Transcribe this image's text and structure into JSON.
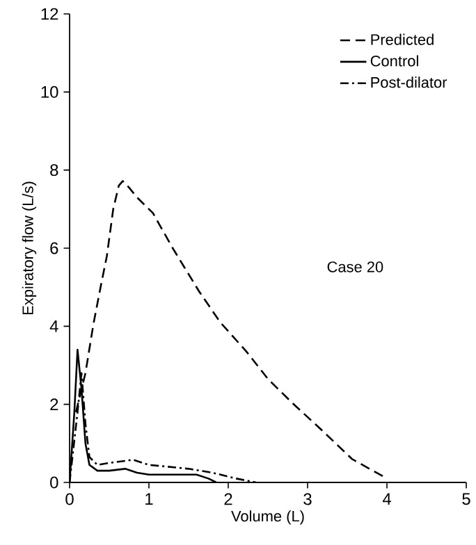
{
  "chart_data": {
    "type": "line",
    "xlabel": "Volume (L)",
    "ylabel": "Expiratory flow (L/s)",
    "xlim": [
      0,
      5
    ],
    "ylim": [
      0,
      12
    ],
    "xticks": [
      0,
      1,
      2,
      3,
      4,
      5
    ],
    "yticks": [
      0,
      2,
      4,
      6,
      8,
      10,
      12
    ],
    "legend": "top right",
    "grid": false,
    "marker": "none",
    "annotations": [
      "Case 20"
    ],
    "series": [
      {
        "name": "Predicted",
        "color": "#000000",
        "line_style": "dashed",
        "x": [
          0.08,
          0.2,
          0.3,
          0.4,
          0.47,
          0.55,
          0.62,
          0.67,
          0.75,
          0.85,
          1.05,
          1.3,
          1.63,
          1.9,
          2.23,
          2.5,
          2.81,
          3.2,
          3.56,
          4
        ],
        "values": [
          1.8,
          2.8,
          4.05,
          5.1,
          5.8,
          7.0,
          7.6,
          7.72,
          7.55,
          7.3,
          6.9,
          6.0,
          4.9,
          4.1,
          3.35,
          2.65,
          2.03,
          1.3,
          0.6,
          0.1
        ]
      },
      {
        "name": "Control",
        "color": "#000000",
        "line_style": "solid",
        "x": [
          0,
          0.06,
          0.1,
          0.15,
          0.2,
          0.25,
          0.35,
          0.5,
          0.7,
          0.85,
          1,
          1.3,
          1.6,
          1.75,
          1.85
        ],
        "values": [
          0,
          1.8,
          3.4,
          2.4,
          1.0,
          0.45,
          0.3,
          0.3,
          0.35,
          0.25,
          0.2,
          0.2,
          0.2,
          0.1,
          0
        ]
      },
      {
        "name": "Post-dilator",
        "color": "#000000",
        "line_style": "dashdot",
        "x": [
          0,
          0.1,
          0.15,
          0.2,
          0.25,
          0.35,
          0.5,
          0.8,
          1,
          1.5,
          1.8,
          2.1,
          2.35
        ],
        "values": [
          0,
          1.8,
          2.8,
          1.5,
          0.65,
          0.45,
          0.5,
          0.58,
          0.45,
          0.35,
          0.25,
          0.1,
          0
        ]
      }
    ]
  }
}
